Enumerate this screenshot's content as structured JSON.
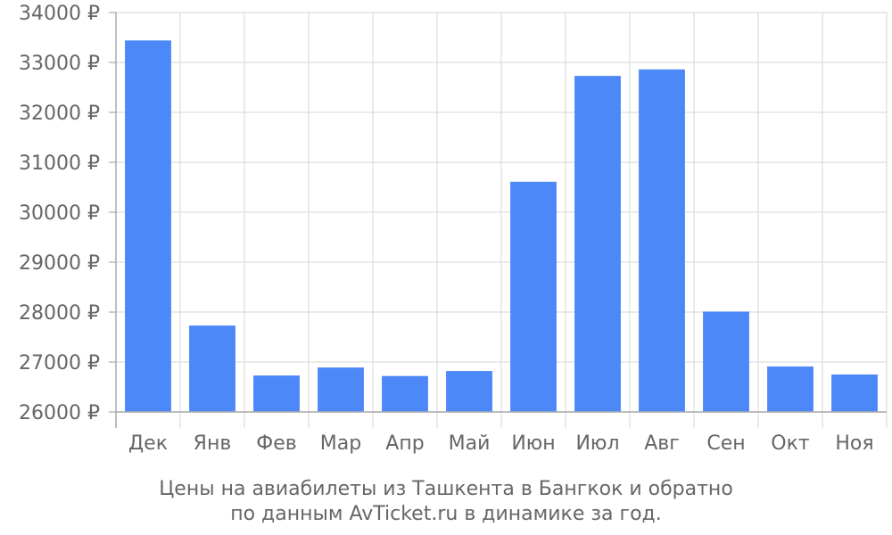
{
  "chart_data": {
    "type": "bar",
    "categories": [
      "Дек",
      "Янв",
      "Фев",
      "Мар",
      "Апр",
      "Май",
      "Июн",
      "Июл",
      "Авг",
      "Сен",
      "Окт",
      "Ноя"
    ],
    "values": [
      33440,
      27730,
      26730,
      26890,
      26720,
      26820,
      30610,
      32730,
      32860,
      28010,
      26910,
      26750
    ],
    "ylim": [
      26000,
      34000
    ],
    "yticks": [
      26000,
      27000,
      28000,
      29000,
      30000,
      31000,
      32000,
      33000,
      34000
    ],
    "ytick_suffix": " ₽",
    "grid": true,
    "bar_color": "#4d88f9",
    "grid_color": "#dddddd",
    "axis_color": "#aaaaaa",
    "text_color": "#666666"
  },
  "caption": {
    "line1": "Цены на авиабилеты из Ташкента в Бангкок и обратно",
    "line2": "по данным AvTicket.ru в динамике за год."
  }
}
